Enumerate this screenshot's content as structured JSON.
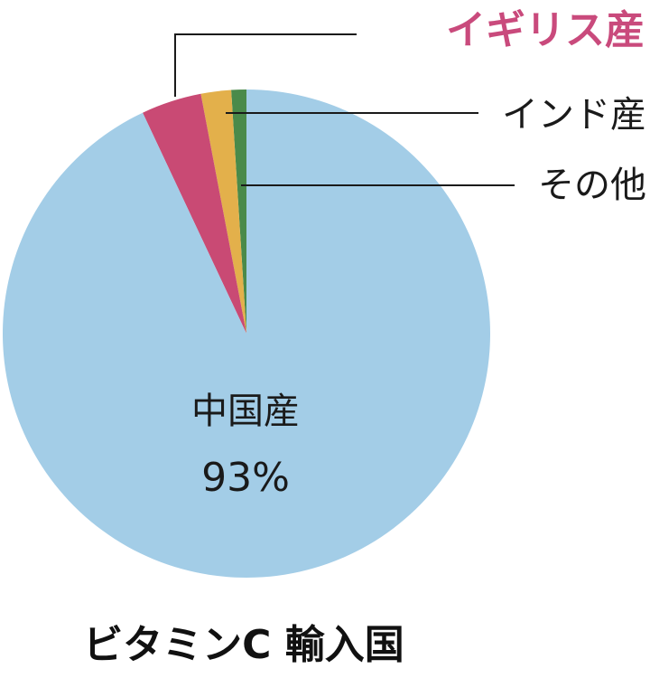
{
  "chart_data": {
    "type": "pie",
    "title": "ビタミンC 輸入国",
    "slices": [
      {
        "label": "中国産",
        "value": 93,
        "value_label": "93%",
        "color": "#a3cde7"
      },
      {
        "label": "イギリス産",
        "value": 4,
        "color": "#c94a74"
      },
      {
        "label": "インド産",
        "value": 2,
        "color": "#e3b04b"
      },
      {
        "label": "その他",
        "value": 1,
        "color": "#4a8a4a"
      }
    ]
  }
}
